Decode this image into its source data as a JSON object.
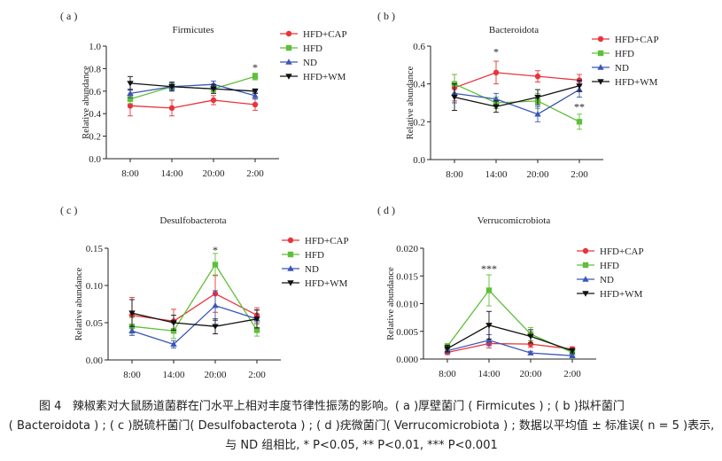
{
  "caption": {
    "label": "图 4",
    "line1": "辣椒素对大鼠肠道菌群在门水平上相对丰度节律性振荡的影响。( a )厚壁菌门 ( Firmicutes ) ; ( b )拟杆菌门",
    "line2": "( Bacteroidota ) ; ( c )脱硫杆菌门( Desulfobacterota ) ; ( d )疣微菌门( Verrucomicrobiota ) ;  数据以平均值 ± 标准误( n = 5 )表示,",
    "line3": "与 ND 组相比, * P<0.05, ** P<0.01, *** P<0.001"
  },
  "colors": {
    "HFD+CAP": "#e8343a",
    "HFD": "#5fbf3a",
    "ND": "#3a56b8",
    "HFD+WM": "#111111"
  },
  "chart_data": [
    {
      "panel": "( a )",
      "type": "line",
      "title": "Firmicutes",
      "ylabel": "Relative abundance",
      "xlabel": "",
      "categories": [
        "8:00",
        "14:00",
        "20:00",
        "2:00"
      ],
      "ylim": [
        0.0,
        1.0
      ],
      "yticks": [
        "0.0",
        "0.2",
        "0.4",
        "0.6",
        "0.8",
        "1.0"
      ],
      "series": [
        {
          "name": "HFD+CAP",
          "values": [
            0.47,
            0.45,
            0.52,
            0.48
          ],
          "errors": [
            0.09,
            0.07,
            0.04,
            0.05
          ]
        },
        {
          "name": "HFD",
          "values": [
            0.53,
            0.64,
            0.62,
            0.73
          ],
          "errors": [
            0.04,
            0.03,
            0.03,
            0.03
          ]
        },
        {
          "name": "ND",
          "values": [
            0.58,
            0.64,
            0.66,
            0.56
          ],
          "errors": [
            0.04,
            0.03,
            0.03,
            0.03
          ]
        },
        {
          "name": "HFD+WM",
          "values": [
            0.67,
            0.64,
            0.62,
            0.6
          ],
          "errors": [
            0.06,
            0.04,
            0.04,
            0.02
          ]
        }
      ],
      "annotations": [
        {
          "text": "*",
          "category": "2:00",
          "y": 0.78
        }
      ],
      "legend": "top-right"
    },
    {
      "panel": "( b )",
      "type": "line",
      "title": "Bacteroidota",
      "ylabel": "Relative abundance",
      "xlabel": "",
      "categories": [
        "8:00",
        "14:00",
        "20:00",
        "2:00"
      ],
      "ylim": [
        0.0,
        0.6
      ],
      "yticks": [
        "0.0",
        "0.2",
        "0.4",
        "0.6"
      ],
      "series": [
        {
          "name": "HFD+CAP",
          "values": [
            0.38,
            0.46,
            0.44,
            0.42
          ],
          "errors": [
            0.07,
            0.06,
            0.03,
            0.03
          ]
        },
        {
          "name": "HFD",
          "values": [
            0.4,
            0.3,
            0.31,
            0.2
          ],
          "errors": [
            0.05,
            0.03,
            0.04,
            0.04
          ]
        },
        {
          "name": "ND",
          "values": [
            0.35,
            0.32,
            0.24,
            0.37
          ],
          "errors": [
            0.05,
            0.03,
            0.04,
            0.04
          ]
        },
        {
          "name": "HFD+WM",
          "values": [
            0.33,
            0.28,
            0.33,
            0.39
          ],
          "errors": [
            0.07,
            0.03,
            0.04,
            0.03
          ]
        }
      ],
      "annotations": [
        {
          "text": "*",
          "category": "14:00",
          "y": 0.55
        },
        {
          "text": "**",
          "category": "2:00",
          "y": 0.26
        }
      ],
      "legend": "top-right"
    },
    {
      "panel": "( c )",
      "type": "line",
      "title": "Desulfobacterota",
      "ylabel": "Relative abundance",
      "xlabel": "",
      "categories": [
        "8:00",
        "14:00",
        "20:00",
        "2:00"
      ],
      "ylim": [
        0.0,
        0.15
      ],
      "yticks": [
        "0.00",
        "0.05",
        "0.10",
        "0.15"
      ],
      "series": [
        {
          "name": "HFD+CAP",
          "values": [
            0.06,
            0.052,
            0.089,
            0.06
          ],
          "errors": [
            0.024,
            0.016,
            0.025,
            0.01
          ]
        },
        {
          "name": "HFD",
          "values": [
            0.045,
            0.039,
            0.128,
            0.04
          ],
          "errors": [
            0.012,
            0.01,
            0.015,
            0.008
          ]
        },
        {
          "name": "ND",
          "values": [
            0.039,
            0.021,
            0.073,
            0.055
          ],
          "errors": [
            0.006,
            0.005,
            0.02,
            0.012
          ]
        },
        {
          "name": "HFD+WM",
          "values": [
            0.063,
            0.05,
            0.045,
            0.055
          ],
          "errors": [
            0.018,
            0.01,
            0.01,
            0.012
          ]
        }
      ],
      "annotations": [
        {
          "text": "*",
          "category": "20:00",
          "y": 0.143
        }
      ],
      "legend": "top-right"
    },
    {
      "panel": "( d )",
      "type": "line",
      "title": "Verrucomicrobiota",
      "ylabel": "Relative abundance",
      "xlabel": "",
      "categories": [
        "8:00",
        "14:00",
        "20:00",
        "2:00"
      ],
      "ylim": [
        0.0,
        0.02
      ],
      "yticks": [
        "0.000",
        "0.005",
        "0.010",
        "0.015",
        "0.020"
      ],
      "series": [
        {
          "name": "HFD+CAP",
          "values": [
            0.0012,
            0.0028,
            0.0027,
            0.0018
          ],
          "errors": [
            0.0004,
            0.0008,
            0.0006,
            0.0004
          ]
        },
        {
          "name": "HFD",
          "values": [
            0.0023,
            0.0124,
            0.0045,
            0.0012
          ],
          "errors": [
            0.0005,
            0.0028,
            0.0012,
            0.0003
          ]
        },
        {
          "name": "ND",
          "values": [
            0.0015,
            0.0034,
            0.0011,
            0.0006
          ],
          "errors": [
            0.0004,
            0.001,
            0.0003,
            0.0002
          ]
        },
        {
          "name": "HFD+WM",
          "values": [
            0.0019,
            0.0061,
            0.0041,
            0.0015
          ],
          "errors": [
            0.0006,
            0.0025,
            0.0012,
            0.0004
          ]
        }
      ],
      "annotations": [
        {
          "text": "***",
          "category": "14:00",
          "y": 0.0157
        }
      ],
      "legend": "top-right"
    }
  ]
}
